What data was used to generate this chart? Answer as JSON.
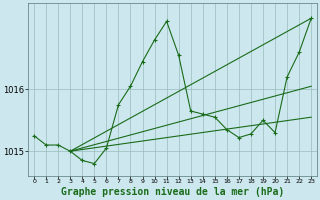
{
  "background_color": "#cce8ee",
  "grid_color": "#99bbbb",
  "line_color": "#1a6b1a",
  "marker_color": "#1a6b1a",
  "title": "Graphe pression niveau de la mer (hPa)",
  "title_fontsize": 7,
  "xlim": [
    -0.5,
    23.5
  ],
  "ylim": [
    1014.6,
    1017.4
  ],
  "yticks": [
    1015,
    1016
  ],
  "xticks": [
    0,
    1,
    2,
    3,
    4,
    5,
    6,
    7,
    8,
    9,
    10,
    11,
    12,
    13,
    14,
    15,
    16,
    17,
    18,
    19,
    20,
    21,
    22,
    23
  ],
  "main_x": [
    0,
    1,
    2,
    3,
    4,
    5,
    6,
    7,
    8,
    9,
    10,
    11,
    12,
    13,
    14,
    15,
    16,
    17,
    18,
    19,
    20,
    21,
    22,
    23
  ],
  "main_y": [
    1015.25,
    1015.1,
    1015.1,
    1015.0,
    1014.85,
    1014.8,
    1015.05,
    1015.75,
    1016.05,
    1016.45,
    1016.8,
    1017.1,
    1016.55,
    1015.65,
    1015.6,
    1015.55,
    1015.35,
    1015.22,
    1015.28,
    1015.5,
    1015.3,
    1016.2,
    1016.6,
    1017.15
  ],
  "trend_lines": [
    {
      "x": [
        3,
        23
      ],
      "y": [
        1015.0,
        1017.15
      ]
    },
    {
      "x": [
        3,
        23
      ],
      "y": [
        1015.0,
        1016.05
      ]
    },
    {
      "x": [
        3,
        23
      ],
      "y": [
        1015.0,
        1015.55
      ]
    }
  ]
}
